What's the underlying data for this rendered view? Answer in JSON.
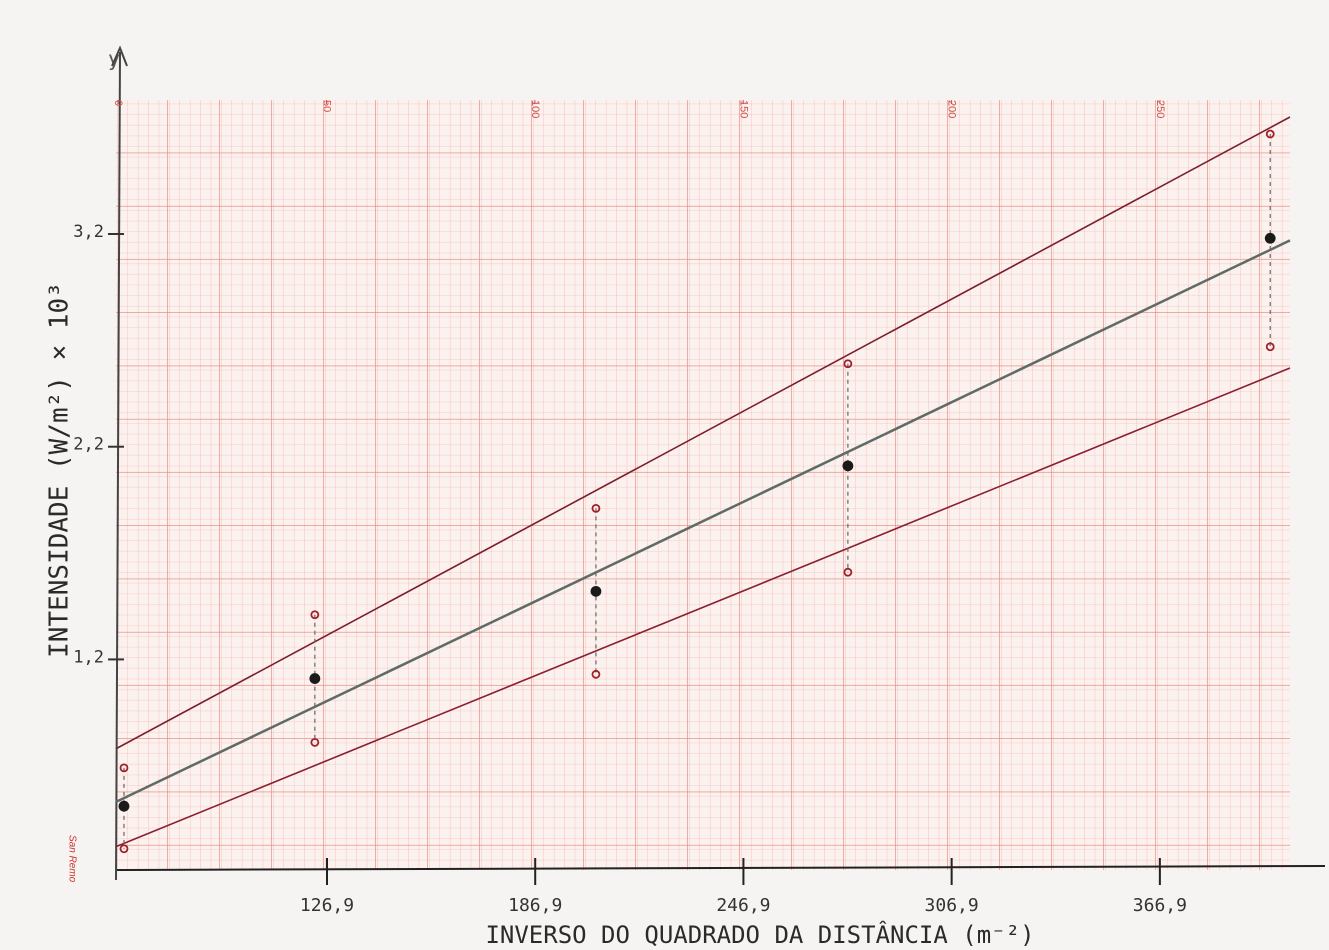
{
  "chart_data": {
    "type": "scatter",
    "x_label": "INVERSO DO QUADRADO DA DISTÂNCIA (m⁻²)",
    "y_label": "INTENSIDADE (W/m²) × 10³",
    "y_axis_symbol": "y",
    "paper_brand": "San Remo",
    "xlim": [
      66.1,
      404.4
    ],
    "ylim": [
      0.21,
      3.83
    ],
    "xticks": [
      {
        "value": 126.9,
        "label": "126,9"
      },
      {
        "value": 186.9,
        "label": "186,9"
      },
      {
        "value": 246.9,
        "label": "246,9"
      },
      {
        "value": 306.9,
        "label": "306,9"
      },
      {
        "value": 366.9,
        "label": "366,9"
      }
    ],
    "yticks": [
      {
        "value": 1.2,
        "label": "1,2"
      },
      {
        "value": 2.2,
        "label": "2,2"
      },
      {
        "value": 3.2,
        "label": "3,2"
      }
    ],
    "x2lim": [
      -0.5,
      281.2
    ],
    "x2ticks": [
      0,
      50,
      100,
      150,
      200,
      250
    ],
    "series": [
      {
        "color": "#a0202a",
        "marker": "open",
        "x": [
          68.4,
          123.4,
          204.4,
          277.0,
          398.7
        ],
        "values": [
          0.69,
          1.41,
          1.91,
          2.59,
          3.67
        ]
      },
      {
        "color": "#1a1a1a",
        "marker": "filled",
        "x": [
          68.4,
          123.4,
          204.4,
          277.0,
          398.7
        ],
        "values": [
          0.51,
          1.11,
          1.52,
          2.11,
          3.18
        ]
      },
      {
        "color": "#a0202a",
        "marker": "open",
        "x": [
          68.4,
          123.4,
          204.4,
          277.0,
          398.7
        ],
        "values": [
          0.31,
          0.81,
          1.13,
          1.61,
          2.67
        ]
      }
    ],
    "lines": [
      {
        "color": "#7a1f2c",
        "x": [
          66.1,
          404.4
        ],
        "values": [
          0.78,
          3.75
        ]
      },
      {
        "color": "#5f6b66",
        "x": [
          66.1,
          404.4
        ],
        "values": [
          0.53,
          3.17
        ]
      },
      {
        "color": "#8a1f30",
        "x": [
          66.1,
          404.4
        ],
        "values": [
          0.32,
          2.57
        ]
      }
    ]
  }
}
